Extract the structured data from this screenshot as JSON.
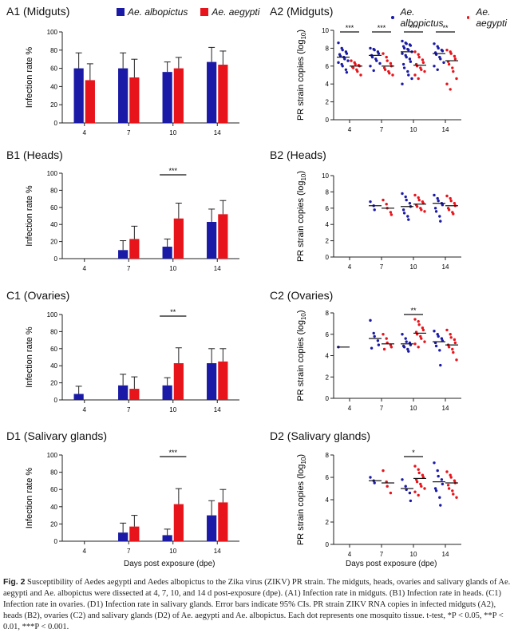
{
  "figure": {
    "caption_label": "Fig. 2",
    "caption_text": "Susceptibility of Aedes aegypti and Aedes albopictus to the Zika virus (ZIKV) PR strain. The midguts, heads, ovaries and salivary glands of Ae. aegypti and Ae. albopictus were dissected at 4, 7, 10, and 14 d post-exposure (dpe). (A1) Infection rate in midguts. (B1) Infection rate in heads. (C1) Infection rate in ovaries. (D1) Infection rate in salivary glands. Error bars indicate 95% CIs. PR strain ZIKV RNA copies in infected midguts (A2), heads (B2), ovaries (C2) and salivary glands (D2) of Ae. aegypti and Ae. albopictus. Each dot represents one mosquito tissue. t-test, *P < 0.05, **P < 0.01, ***P < 0.001.",
    "xlabel_left": "Days post exposure (dpe)",
    "xlabel_right": "Days post exposure (dpe)",
    "legend_bar": [
      {
        "name": "Ae. albopictus",
        "color": "#1a1aa6"
      },
      {
        "name": "Ae. aegypti",
        "color": "#e8141b"
      }
    ],
    "legend_dot": [
      {
        "name": "Ae. albopictus",
        "color": "#1a1aa6"
      },
      {
        "name": "Ae. aegypti",
        "color": "#e8141b"
      }
    ]
  },
  "chart_data": [
    {
      "id": "A1",
      "title": "A1 (Midguts)",
      "type": "bar",
      "ylabel": "Infection rate %",
      "ylim": [
        0,
        100
      ],
      "yticks": [
        0,
        20,
        40,
        60,
        80,
        100
      ],
      "categories": [
        "4",
        "7",
        "10",
        "14"
      ],
      "series": [
        {
          "name": "Ae. albopictus",
          "color": "#1a1aa6",
          "values": [
            60,
            60,
            56,
            67
          ],
          "err_upper": [
            77,
            77,
            67,
            83
          ]
        },
        {
          "name": "Ae. aegypti",
          "color": "#e8141b",
          "values": [
            47,
            50,
            60,
            64
          ],
          "err_upper": [
            65,
            70,
            72,
            79
          ]
        }
      ],
      "sig": []
    },
    {
      "id": "B1",
      "title": "B1 (Heads)",
      "type": "bar",
      "ylabel": "Infection rate %",
      "ylim": [
        0,
        100
      ],
      "yticks": [
        0,
        20,
        40,
        60,
        80,
        100
      ],
      "categories": [
        "4",
        "7",
        "10",
        "14"
      ],
      "series": [
        {
          "name": "Ae. albopictus",
          "color": "#1a1aa6",
          "values": [
            0,
            10,
            14,
            43
          ],
          "err_upper": [
            0,
            21,
            23,
            58
          ]
        },
        {
          "name": "Ae. aegypti",
          "color": "#e8141b",
          "values": [
            0,
            23,
            47,
            52
          ],
          "err_upper": [
            0,
            38,
            65,
            68
          ]
        }
      ],
      "sig": [
        {
          "category": "10",
          "label": "***"
        }
      ]
    },
    {
      "id": "C1",
      "title": "C1 (Ovaries)",
      "type": "bar",
      "ylabel": "Infection rate %",
      "ylim": [
        0,
        100
      ],
      "yticks": [
        0,
        20,
        40,
        60,
        80,
        100
      ],
      "categories": [
        "4",
        "7",
        "10",
        "14"
      ],
      "series": [
        {
          "name": "Ae. albopictus",
          "color": "#1a1aa6",
          "values": [
            7,
            17,
            17,
            43
          ],
          "err_upper": [
            16,
            30,
            26,
            60
          ]
        },
        {
          "name": "Ae. aegypti",
          "color": "#e8141b",
          "values": [
            0,
            13,
            43,
            45
          ],
          "err_upper": [
            0,
            27,
            61,
            60
          ]
        }
      ],
      "sig": [
        {
          "category": "10",
          "label": "**"
        }
      ]
    },
    {
      "id": "D1",
      "title": "D1 (Salivary glands)",
      "type": "bar",
      "ylabel": "Infection rate %",
      "ylim": [
        0,
        100
      ],
      "yticks": [
        0,
        20,
        40,
        60,
        80,
        100
      ],
      "categories": [
        "4",
        "7",
        "10",
        "14"
      ],
      "series": [
        {
          "name": "Ae. albopictus",
          "color": "#1a1aa6",
          "values": [
            0,
            10,
            7,
            30
          ],
          "err_upper": [
            0,
            21,
            14,
            47
          ]
        },
        {
          "name": "Ae. aegypti",
          "color": "#e8141b",
          "values": [
            0,
            17,
            43,
            45
          ],
          "err_upper": [
            0,
            30,
            61,
            60
          ]
        }
      ],
      "sig": [
        {
          "category": "10",
          "label": "***"
        }
      ]
    },
    {
      "id": "A2",
      "title": "A2 (Midguts)",
      "type": "scatter",
      "ylabel": "PR strain copies (log10)",
      "ylim": [
        0,
        10
      ],
      "yticks": [
        0,
        2,
        4,
        6,
        8,
        10
      ],
      "categories": [
        "4",
        "7",
        "10",
        "14"
      ],
      "series": [
        {
          "name": "Ae. albopictus",
          "color": "#1a1aa6",
          "mean": [
            7.0,
            7.2,
            7.6,
            7.4
          ],
          "points": [
            [
              8.6,
              8.0,
              7.8,
              7.6,
              7.4,
              7.3,
              7.1,
              7.0,
              6.8,
              6.6,
              6.4,
              6.2,
              6.0,
              5.6,
              5.3
            ],
            [
              8.0,
              7.9,
              7.8,
              7.6,
              7.4,
              7.2,
              7.0,
              6.8,
              6.6,
              6.3,
              6.0,
              5.5
            ],
            [
              8.8,
              8.6,
              8.5,
              8.4,
              8.3,
              8.2,
              8.0,
              7.9,
              7.8,
              7.6,
              7.4,
              7.2,
              7.0,
              6.8,
              6.5,
              6.2,
              5.8,
              5.4,
              5.0,
              4.6,
              4.0
            ],
            [
              8.5,
              8.2,
              8.0,
              7.8,
              7.7,
              7.5,
              7.3,
              7.0,
              6.8,
              6.4,
              6.0,
              5.6
            ]
          ]
        },
        {
          "name": "Ae. aegypti",
          "color": "#e8141b",
          "mean": [
            6.0,
            6.0,
            6.1,
            6.6
          ],
          "points": [
            [
              6.6,
              6.4,
              6.2,
              6.1,
              6.0,
              5.9,
              5.8,
              5.6,
              5.4,
              5.0
            ],
            [
              7.4,
              7.0,
              6.6,
              6.3,
              6.0,
              5.8,
              5.6,
              5.4,
              5.2,
              5.0
            ],
            [
              7.6,
              7.3,
              7.0,
              6.7,
              6.4,
              6.2,
              6.0,
              5.8,
              5.6,
              5.4,
              5.0,
              4.6
            ],
            [
              7.8,
              7.6,
              7.4,
              7.1,
              6.8,
              6.5,
              6.2,
              5.8,
              5.4,
              4.6,
              4.0,
              3.4
            ]
          ]
        }
      ],
      "sig": [
        {
          "category": "4",
          "label": "***"
        },
        {
          "category": "7",
          "label": "***"
        },
        {
          "category": "10",
          "label": "***"
        },
        {
          "category": "14",
          "label": "**"
        }
      ]
    },
    {
      "id": "B2",
      "title": "B2 (Heads)",
      "type": "scatter",
      "ylabel": "PR strain copies (log10)",
      "ylim": [
        0,
        10
      ],
      "yticks": [
        0,
        2,
        4,
        6,
        8,
        10
      ],
      "categories": [
        "4",
        "7",
        "10",
        "14"
      ],
      "series": [
        {
          "name": "Ae. albopictus",
          "color": "#1a1aa6",
          "mean": [
            null,
            6.3,
            6.2,
            6.6
          ],
          "points": [
            [],
            [
              6.8,
              6.3,
              5.8
            ],
            [
              7.8,
              7.4,
              7.0,
              6.6,
              6.2,
              5.8,
              5.4,
              5.0,
              4.6
            ],
            [
              7.6,
              7.2,
              6.9,
              6.6,
              6.4,
              6.0,
              5.6,
              5.0,
              4.4
            ]
          ]
        },
        {
          "name": "Ae. aegypti",
          "color": "#e8141b",
          "mean": [
            null,
            6.0,
            6.5,
            6.3
          ],
          "points": [
            [],
            [
              7.0,
              6.5,
              6.0,
              5.5,
              5.2
            ],
            [
              7.6,
              7.3,
              7.0,
              6.8,
              6.6,
              6.4,
              6.2,
              6.0,
              5.8,
              5.6
            ],
            [
              7.5,
              7.2,
              6.9,
              6.6,
              6.3,
              6.0,
              5.8,
              5.5,
              5.3
            ]
          ]
        }
      ],
      "sig": []
    },
    {
      "id": "C2",
      "title": "C2 (Ovaries)",
      "type": "scatter",
      "ylabel": "PR strain copies (log10)",
      "ylim": [
        0,
        8
      ],
      "yticks": [
        0,
        2,
        4,
        6,
        8
      ],
      "categories": [
        "4",
        "7",
        "10",
        "14"
      ],
      "series": [
        {
          "name": "Ae. albopictus",
          "color": "#1a1aa6",
          "mean": [
            4.8,
            5.6,
            5.1,
            5.3
          ],
          "points": [
            [
              4.8
            ],
            [
              7.3,
              6.1,
              5.8,
              5.4,
              5.0,
              4.7
            ],
            [
              6.0,
              5.6,
              5.3,
              5.2,
              5.0,
              4.9,
              4.8,
              4.6,
              4.4
            ],
            [
              6.3,
              6.0,
              5.8,
              5.6,
              5.4,
              5.2,
              4.9,
              4.5,
              3.1
            ]
          ]
        },
        {
          "name": "Ae. aegypti",
          "color": "#e8141b",
          "mean": [
            null,
            5.1,
            6.1,
            5.0
          ],
          "points": [
            [],
            [
              6.0,
              5.6,
              5.2,
              5.0,
              4.8,
              4.6
            ],
            [
              7.4,
              7.2,
              6.9,
              6.6,
              6.4,
              6.2,
              6.0,
              5.8,
              5.6,
              5.3,
              5.1,
              4.8
            ],
            [
              6.4,
              6.0,
              5.7,
              5.5,
              5.2,
              5.0,
              4.8,
              4.6,
              4.3,
              3.6
            ]
          ]
        }
      ],
      "sig": [
        {
          "category": "10",
          "label": "**"
        }
      ]
    },
    {
      "id": "D2",
      "title": "D2 (Salivary glands)",
      "type": "scatter",
      "ylabel": "PR strain copies (log10)",
      "ylim": [
        0,
        8
      ],
      "yticks": [
        0,
        2,
        4,
        6,
        8
      ],
      "categories": [
        "4",
        "7",
        "10",
        "14"
      ],
      "series": [
        {
          "name": "Ae. albopictus",
          "color": "#1a1aa6",
          "mean": [
            null,
            5.7,
            5.0,
            5.6
          ],
          "points": [
            [],
            [
              6.0,
              5.7,
              5.5
            ],
            [
              5.8,
              5.2,
              4.9,
              4.6,
              3.9
            ],
            [
              7.3,
              6.6,
              6.1,
              5.8,
              5.4,
              5.0,
              4.8,
              4.2,
              3.5
            ]
          ]
        },
        {
          "name": "Ae. aegypti",
          "color": "#e8141b",
          "mean": [
            null,
            5.5,
            5.9,
            5.5
          ],
          "points": [
            [],
            [
              6.6,
              5.6,
              5.2,
              4.6
            ],
            [
              7.0,
              6.7,
              6.4,
              6.2,
              6.0,
              5.8,
              5.6,
              5.4,
              5.2,
              5.0,
              4.7,
              4.4
            ],
            [
              6.5,
              6.2,
              6.0,
              5.7,
              5.5,
              5.3,
              5.0,
              4.8,
              4.5,
              4.2
            ]
          ]
        }
      ],
      "sig": [
        {
          "category": "10",
          "label": "*"
        }
      ]
    }
  ]
}
